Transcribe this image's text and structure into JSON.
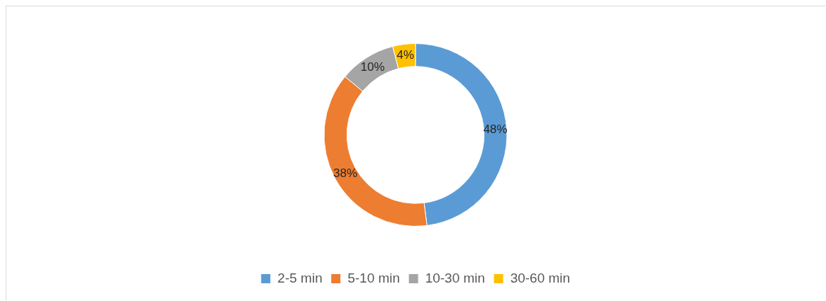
{
  "chart_data": {
    "type": "donut",
    "categories": [
      "2-5 min",
      "5-10 min",
      "10-30 min",
      "30-60 min"
    ],
    "values": [
      48,
      38,
      10,
      4
    ],
    "colors": [
      "#5b9bd5",
      "#ed7d31",
      "#a5a5a5",
      "#ffc000"
    ],
    "value_labels": [
      "48%",
      "38%",
      "10%",
      "4%"
    ],
    "legend": "bottom"
  }
}
